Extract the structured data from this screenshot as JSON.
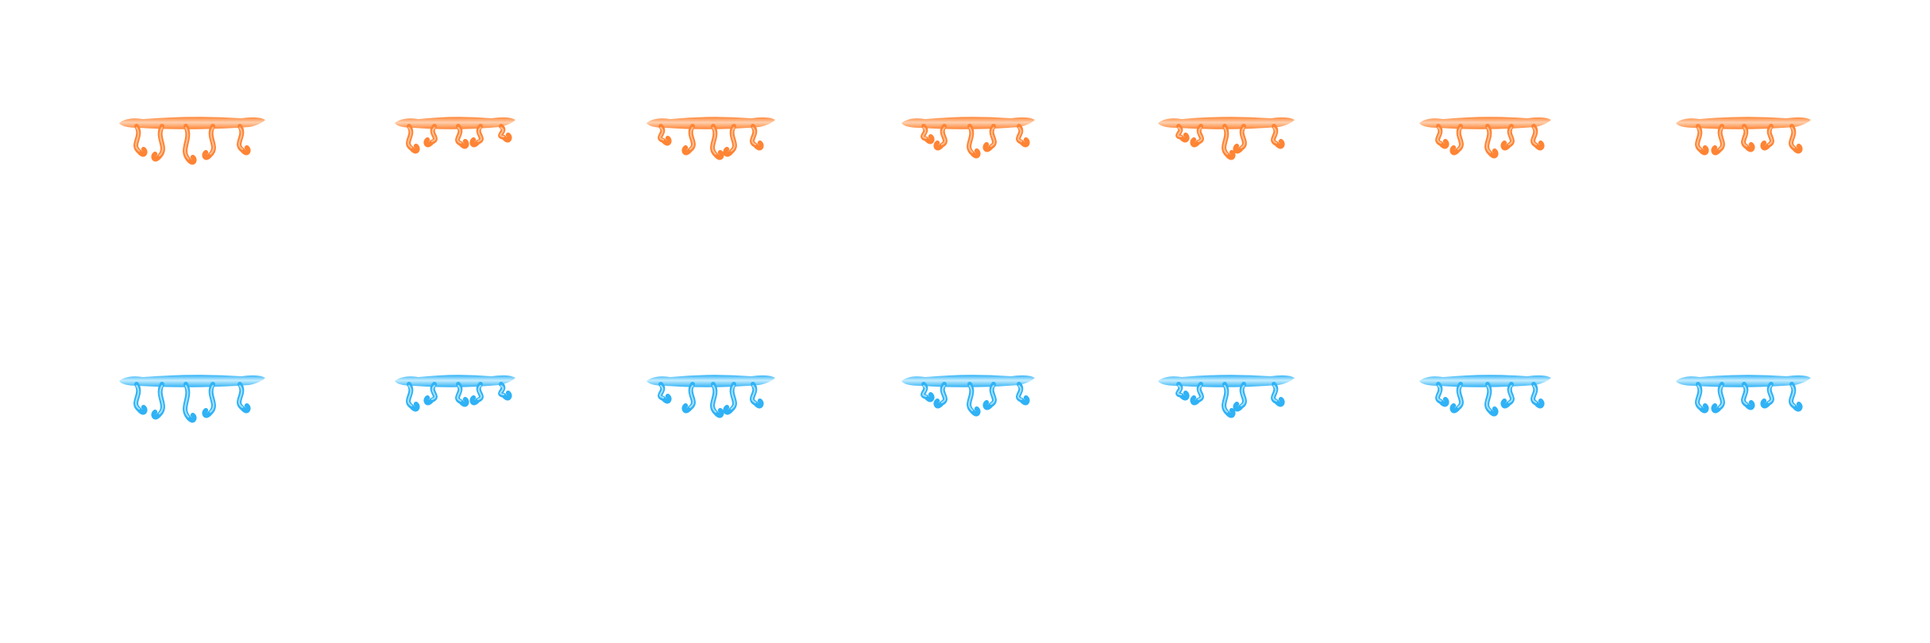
{
  "sprite_sheet": {
    "rows": [
      {
        "name": "orange",
        "color_main": "#ff8434",
        "color_light": "#ffd0ae",
        "frames": 7
      },
      {
        "name": "blue",
        "color_main": "#2fb2f6",
        "color_light": "#c3ecff",
        "frames": 7
      }
    ]
  }
}
